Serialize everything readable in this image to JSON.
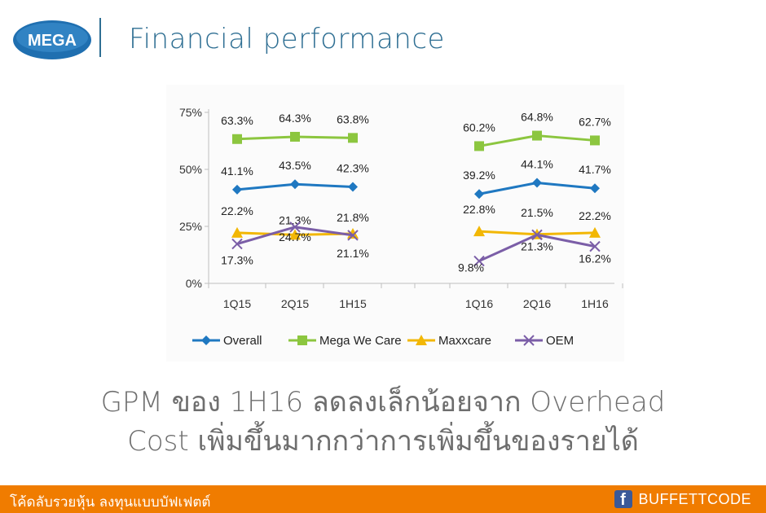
{
  "header": {
    "logo_text": "MEGA",
    "title": "Financial performance"
  },
  "chart_data": {
    "type": "line",
    "categories": [
      "1Q15",
      "2Q15",
      "1H15",
      "1Q16",
      "2Q16",
      "1H16"
    ],
    "groups": [
      [
        "1Q15",
        "2Q15",
        "1H15"
      ],
      [
        "1Q16",
        "2Q16",
        "1H16"
      ]
    ],
    "y_ticks": [
      "0%",
      "25%",
      "50%",
      "75%"
    ],
    "ylim": [
      0,
      75
    ],
    "series": [
      {
        "name": "Overall",
        "color": "#1f78c1",
        "marker": "diamond",
        "values": [
          41.1,
          43.5,
          42.3,
          39.2,
          44.1,
          41.7
        ],
        "labels": [
          "41.1%",
          "43.5%",
          "42.3%",
          "39.2%",
          "44.1%",
          "41.7%"
        ]
      },
      {
        "name": "Mega We Care",
        "color": "#8cc63f",
        "marker": "square",
        "values": [
          63.3,
          64.3,
          63.8,
          60.2,
          64.8,
          62.7
        ],
        "labels": [
          "63.3%",
          "64.3%",
          "63.8%",
          "60.2%",
          "64.8%",
          "62.7%"
        ]
      },
      {
        "name": "Maxxcare",
        "color": "#f2b705",
        "marker": "triangle",
        "values": [
          22.2,
          21.3,
          21.8,
          22.8,
          21.5,
          22.2
        ],
        "labels": [
          "22.2%",
          "21.3%",
          "21.8%",
          "22.8%",
          "21.5%",
          "22.2%"
        ]
      },
      {
        "name": "OEM",
        "color": "#7b5ea7",
        "marker": "x",
        "values": [
          17.3,
          24.7,
          21.1,
          9.8,
          21.3,
          16.2
        ],
        "labels": [
          "17.3%",
          "24.7%",
          "21.1%",
          "9.8%",
          "21.3%",
          "16.2%"
        ]
      }
    ],
    "legend_position": "bottom"
  },
  "caption": {
    "line1": "GPM ของ 1H16 ลดลงเล็กน้อยจาก Overhead",
    "line2": "Cost เพิ่มขึ้นมากกว่าการเพิ่มขึ้นของรายได้"
  },
  "footer": {
    "left_text": "โค้ดลับรวยหุ้น ลงทุนแบบบัฟเฟตต์",
    "icon": "facebook-icon",
    "brand": "BUFFETTCODE",
    "bar_color": "#f07c00"
  }
}
